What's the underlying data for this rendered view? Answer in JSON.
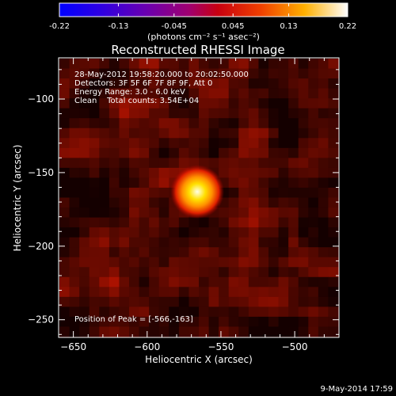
{
  "colorbar": {
    "tick_labels": [
      "-0.22",
      "-0.13",
      "-0.045",
      "0.045",
      "0.13",
      "0.22"
    ],
    "ticks": [
      -0.22,
      -0.13,
      -0.045,
      0.045,
      0.13,
      0.22
    ],
    "range": [
      -0.22,
      0.22
    ],
    "units": "(photons cm⁻² s⁻¹ asec⁻²)",
    "colors": [
      "#0000ff",
      "#4b00c8",
      "#8a00a0",
      "#c00000",
      "#ff6000",
      "#ffd400",
      "#ffffff"
    ]
  },
  "image": {
    "title": "Reconstructed RHESSI Image",
    "info_lines": [
      "28-May-2012 19:58:20.000 to 20:02:50.000",
      "Detectors: 3F 5F 6F 7F 8F 9F, Att 0",
      "Energy Range: 3.0 - 6.0 keV",
      "Clean    Total counts: 3.54E+04"
    ],
    "peak_label": "Position of Peak = [-566,-163]",
    "peak": [
      -566,
      -163
    ],
    "xlabel": "Heliocentric X (arcsec)",
    "ylabel": "Heliocentric Y (arcsec)",
    "xlim": [
      -660,
      -470
    ],
    "ylim": [
      -262,
      -72
    ],
    "xticks": [
      -650,
      -600,
      -550,
      -500
    ],
    "yticks": [
      -250,
      -200,
      -150,
      -100
    ]
  },
  "footer": {
    "date": "9-May-2014 17:59"
  }
}
